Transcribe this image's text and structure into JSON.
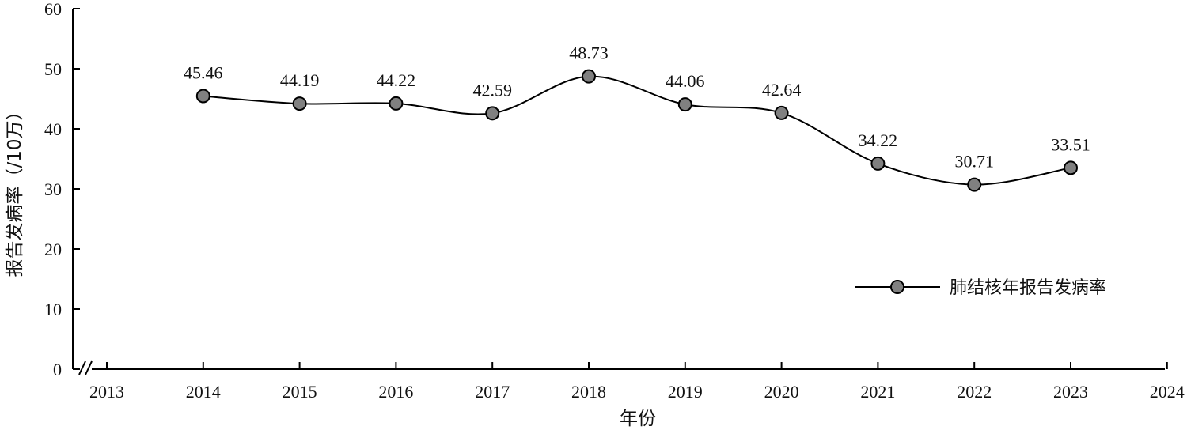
{
  "chart_data": {
    "type": "line",
    "x": [
      2014,
      2015,
      2016,
      2017,
      2018,
      2019,
      2020,
      2021,
      2022,
      2023
    ],
    "series": [
      {
        "name": "肺结核年报告发病率",
        "values": [
          45.46,
          44.19,
          44.22,
          42.59,
          48.73,
          44.06,
          42.64,
          34.22,
          30.71,
          33.51
        ],
        "data_labels": [
          "45.46",
          "44.19",
          "44.22",
          "42.59",
          "48.73",
          "44.06",
          "42.64",
          "34.22",
          "30.71",
          "33.51"
        ]
      }
    ],
    "xlabel": "年份",
    "ylabel": "报告发病率（/10万）",
    "xlim": [
      2013,
      2024
    ],
    "ylim": [
      0,
      60
    ],
    "x_ticks": [
      "2013",
      "2014",
      "2015",
      "2016",
      "2017",
      "2018",
      "2019",
      "2020",
      "2021",
      "2022",
      "2023",
      "2024"
    ],
    "y_ticks": [
      "0",
      "10",
      "20",
      "30",
      "40",
      "50",
      "60"
    ],
    "axis_break": "y-axis-bottom",
    "grid": false,
    "legend_position": "right",
    "colors": {
      "line": "#000000",
      "marker_fill": "#808080",
      "marker_stroke": "#000000"
    }
  }
}
